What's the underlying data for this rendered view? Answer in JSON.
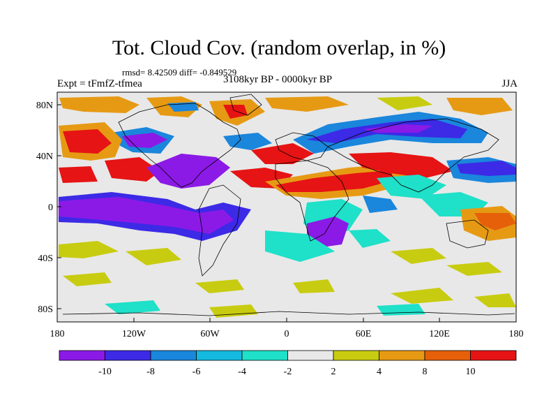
{
  "title": "Tot. Cloud Cov. (random overlap, in %)",
  "stats_line": "rmsd= 8.42509 diff= -0.849529",
  "period_line": "3108kyr BP - 0000kyr BP",
  "expt_line": "Expt = tFmfZ-tfmea",
  "season": "JJA",
  "map": {
    "lon_range": [
      -180,
      180
    ],
    "lat_range": [
      -90,
      90
    ],
    "lat_ticks": [
      "80N",
      "40N",
      "0",
      "40S",
      "80S"
    ],
    "lon_ticks": [
      "180",
      "120W",
      "60W",
      "0",
      "60E",
      "120E",
      "180"
    ]
  },
  "colorbar": {
    "labels": [
      "-10",
      "-8",
      "-6",
      "-4",
      "-2",
      "2",
      "4",
      "8",
      "10"
    ],
    "colors": [
      "#8b1ae6",
      "#3c2ae6",
      "#1a86dc",
      "#14b9e0",
      "#1fe0c8",
      "#e8e8e8",
      "#c8cc10",
      "#e69a14",
      "#e6600a",
      "#e61414"
    ]
  },
  "palette": {
    "neg3": "#8b1ae6",
    "neg2": "#3c2ae6",
    "neg1": "#1a86dc",
    "neg0": "#1fe0c8",
    "neutral": "#e8e8e8",
    "pos0": "#c8cc10",
    "pos1": "#e69a14",
    "pos2": "#e6600a",
    "pos3": "#e61414"
  }
}
